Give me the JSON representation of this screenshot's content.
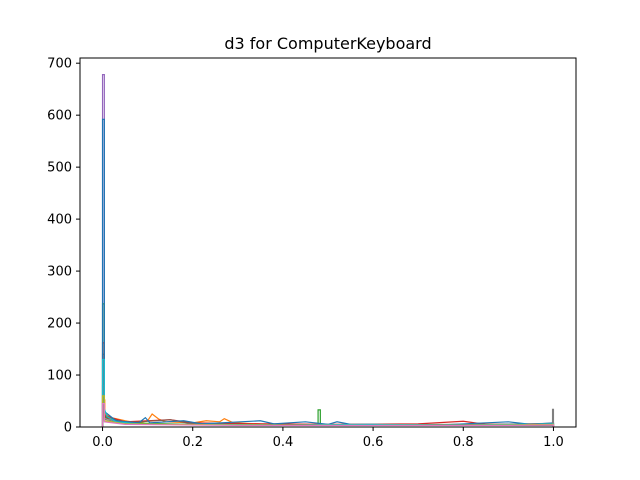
{
  "chart_data": {
    "type": "step-histogram",
    "title": "d3 for ComputerKeyboard",
    "xlabel": "",
    "ylabel": "",
    "xlim": [
      -0.05,
      1.05
    ],
    "ylim": [
      0,
      710
    ],
    "x_ticks": [
      0.0,
      0.2,
      0.4,
      0.6,
      0.8,
      1.0
    ],
    "x_tick_labels": [
      "0.0",
      "0.2",
      "0.4",
      "0.6",
      "0.8",
      "1.0"
    ],
    "y_ticks": [
      0,
      100,
      200,
      300,
      400,
      500,
      600,
      700
    ],
    "y_tick_labels": [
      "0",
      "100",
      "200",
      "300",
      "400",
      "500",
      "600",
      "700"
    ],
    "grid": false,
    "legend": "none",
    "series": [
      {
        "color": "#9467bd",
        "points": [
          [
            0.0,
            0
          ],
          [
            0.0,
            678
          ],
          [
            0.004,
            678
          ],
          [
            0.004,
            25
          ],
          [
            0.03,
            8
          ],
          [
            0.15,
            5
          ],
          [
            0.35,
            4
          ],
          [
            0.55,
            3
          ],
          [
            0.75,
            4
          ],
          [
            0.95,
            5
          ],
          [
            1.0,
            6
          ],
          [
            1.0,
            0
          ]
        ]
      },
      {
        "color": "#ff7f0e",
        "points": [
          [
            0.0,
            0
          ],
          [
            0.0,
            52
          ],
          [
            0.005,
            52
          ],
          [
            0.005,
            25
          ],
          [
            0.02,
            18
          ],
          [
            0.05,
            12
          ],
          [
            0.08,
            8
          ],
          [
            0.1,
            12
          ],
          [
            0.11,
            25
          ],
          [
            0.125,
            15
          ],
          [
            0.14,
            10
          ],
          [
            0.2,
            8
          ],
          [
            0.23,
            12
          ],
          [
            0.26,
            10
          ],
          [
            0.27,
            16
          ],
          [
            0.29,
            8
          ],
          [
            0.35,
            6
          ],
          [
            0.45,
            5
          ],
          [
            0.55,
            4
          ],
          [
            0.65,
            5
          ],
          [
            0.75,
            4
          ],
          [
            0.85,
            5
          ],
          [
            0.95,
            4
          ],
          [
            1.0,
            6
          ],
          [
            1.0,
            0
          ]
        ]
      },
      {
        "color": "#2ca02c",
        "points": [
          [
            0.0,
            0
          ],
          [
            0.0,
            237
          ],
          [
            0.004,
            237
          ],
          [
            0.004,
            20
          ],
          [
            0.05,
            8
          ],
          [
            0.2,
            5
          ],
          [
            0.4,
            4
          ],
          [
            0.478,
            4
          ],
          [
            0.478,
            33
          ],
          [
            0.483,
            33
          ],
          [
            0.483,
            4
          ],
          [
            0.6,
            3
          ],
          [
            0.8,
            4
          ],
          [
            1.0,
            5
          ],
          [
            1.0,
            0
          ]
        ]
      },
      {
        "color": "#d62728",
        "points": [
          [
            0.0,
            0
          ],
          [
            0.0,
            162
          ],
          [
            0.004,
            162
          ],
          [
            0.004,
            22
          ],
          [
            0.05,
            10
          ],
          [
            0.15,
            14
          ],
          [
            0.2,
            8
          ],
          [
            0.35,
            6
          ],
          [
            0.5,
            5
          ],
          [
            0.7,
            6
          ],
          [
            0.8,
            11
          ],
          [
            0.85,
            5
          ],
          [
            1.0,
            7
          ],
          [
            1.0,
            0
          ]
        ]
      },
      {
        "color": "#8c564b",
        "points": [
          [
            0.0,
            0
          ],
          [
            0.0,
            140
          ],
          [
            0.004,
            140
          ],
          [
            0.004,
            18
          ],
          [
            0.05,
            8
          ],
          [
            0.15,
            14
          ],
          [
            0.2,
            6
          ],
          [
            0.4,
            4
          ],
          [
            0.6,
            4
          ],
          [
            0.8,
            5
          ],
          [
            1.0,
            5
          ],
          [
            1.0,
            0
          ]
        ]
      },
      {
        "color": "#1f77b4",
        "points": [
          [
            0.0,
            0
          ],
          [
            0.0,
            592
          ],
          [
            0.004,
            592
          ],
          [
            0.004,
            30
          ],
          [
            0.03,
            12
          ],
          [
            0.08,
            8
          ],
          [
            0.095,
            18
          ],
          [
            0.105,
            8
          ],
          [
            0.18,
            12
          ],
          [
            0.22,
            6
          ],
          [
            0.35,
            12
          ],
          [
            0.38,
            6
          ],
          [
            0.45,
            10
          ],
          [
            0.5,
            5
          ],
          [
            0.52,
            10
          ],
          [
            0.55,
            5
          ],
          [
            0.75,
            4
          ],
          [
            0.9,
            10
          ],
          [
            0.95,
            5
          ],
          [
            1.0,
            8
          ],
          [
            1.0,
            0
          ]
        ]
      },
      {
        "color": "#7f7f7f",
        "points": [
          [
            0.0,
            0
          ],
          [
            0.0,
            80
          ],
          [
            0.004,
            80
          ],
          [
            0.004,
            15
          ],
          [
            0.05,
            6
          ],
          [
            0.3,
            4
          ],
          [
            0.6,
            3
          ],
          [
            0.9,
            3
          ],
          [
            0.998,
            3
          ],
          [
            0.998,
            34
          ],
          [
            1.0,
            34
          ],
          [
            1.0,
            0
          ]
        ]
      },
      {
        "color": "#17becf",
        "points": [
          [
            0.0,
            0
          ],
          [
            0.0,
            130
          ],
          [
            0.004,
            130
          ],
          [
            0.004,
            35
          ],
          [
            0.01,
            20
          ],
          [
            0.03,
            10
          ],
          [
            0.08,
            6
          ],
          [
            0.2,
            5
          ],
          [
            0.4,
            4
          ],
          [
            0.6,
            5
          ],
          [
            0.8,
            4
          ],
          [
            1.0,
            6
          ],
          [
            1.0,
            0
          ]
        ]
      },
      {
        "color": "#bcbd22",
        "points": [
          [
            0.0,
            0
          ],
          [
            0.0,
            60
          ],
          [
            0.004,
            60
          ],
          [
            0.004,
            12
          ],
          [
            0.05,
            6
          ],
          [
            0.3,
            4
          ],
          [
            0.6,
            3
          ],
          [
            0.9,
            4
          ],
          [
            1.0,
            5
          ],
          [
            1.0,
            0
          ]
        ]
      },
      {
        "color": "#e377c2",
        "points": [
          [
            0.0,
            0
          ],
          [
            0.0,
            45
          ],
          [
            0.004,
            45
          ],
          [
            0.004,
            10
          ],
          [
            0.05,
            5
          ],
          [
            0.3,
            3
          ],
          [
            0.6,
            3
          ],
          [
            0.9,
            3
          ],
          [
            1.0,
            4
          ],
          [
            1.0,
            0
          ]
        ]
      }
    ]
  }
}
